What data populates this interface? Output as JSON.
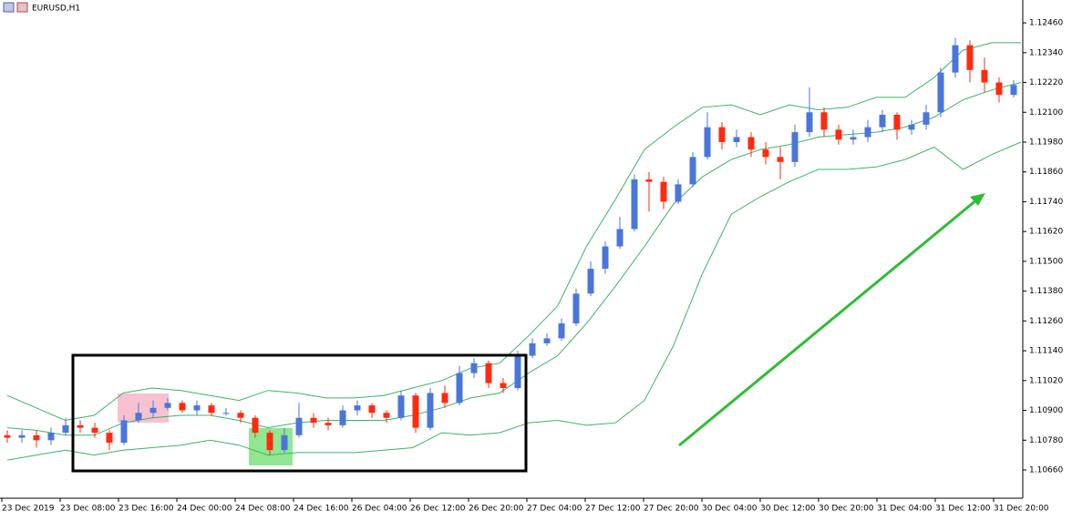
{
  "chart_data": {
    "type": "candlestick",
    "title": "EURUSD,H1",
    "up_color": "#4a76dc",
    "down_color": "#ff2a10",
    "open": [
      1.108,
      1.1079,
      1.108,
      1.1078,
      1.1081,
      1.1084,
      1.1083,
      1.1081,
      1.1077,
      1.1086,
      1.1089,
      1.1091,
      1.1093,
      1.109,
      1.1092,
      1.1089,
      1.1089,
      1.1087,
      1.1081,
      1.1074,
      1.108,
      1.1087,
      1.1085,
      1.1084,
      1.109,
      1.1092,
      1.1089,
      1.1087,
      1.1096,
      1.1083,
      1.1097,
      1.1093,
      1.1105,
      1.1109,
      1.1101,
      1.1099,
      1.1112,
      1.1117,
      1.1119,
      1.1125,
      1.1137,
      1.1147,
      1.1156,
      1.1163,
      1.1183,
      1.1182,
      1.1174,
      1.1181,
      1.1192,
      1.1204,
      1.1198,
      1.12,
      1.1195,
      1.1192,
      1.119,
      1.1202,
      1.121,
      1.1203,
      1.1199,
      1.12,
      1.1204,
      1.1209,
      1.1203,
      1.1205,
      1.121,
      1.1226,
      1.1237,
      1.1227,
      1.1222,
      1.1217
    ],
    "high": [
      1.1082,
      1.1082,
      1.1082,
      1.1083,
      1.1087,
      1.1086,
      1.1085,
      1.1082,
      1.1088,
      1.1093,
      1.1094,
      1.1095,
      1.1094,
      1.1094,
      1.1093,
      1.1091,
      1.109,
      1.1088,
      1.1082,
      1.1083,
      1.1093,
      1.1089,
      1.1087,
      1.1092,
      1.1094,
      1.1093,
      1.109,
      1.1098,
      1.1097,
      1.1099,
      1.11,
      1.1108,
      1.1111,
      1.111,
      1.1103,
      1.1114,
      1.1119,
      1.1121,
      1.1127,
      1.1139,
      1.115,
      1.1158,
      1.1168,
      1.1185,
      1.1186,
      1.1184,
      1.1183,
      1.1194,
      1.121,
      1.1206,
      1.1203,
      1.1202,
      1.1198,
      1.1196,
      1.1205,
      1.122,
      1.1212,
      1.1205,
      1.1203,
      1.1207,
      1.1211,
      1.121,
      1.1207,
      1.1213,
      1.1228,
      1.124,
      1.1239,
      1.1232,
      1.1224,
      1.1223
    ],
    "low": [
      1.1077,
      1.1077,
      1.1075,
      1.1076,
      1.108,
      1.1081,
      1.1079,
      1.1074,
      1.1076,
      1.1085,
      1.1087,
      1.109,
      1.1089,
      1.1088,
      1.1088,
      1.1088,
      1.1085,
      1.1079,
      1.1072,
      1.1073,
      1.1079,
      1.1083,
      1.1082,
      1.1083,
      1.1088,
      1.1087,
      1.1085,
      1.1086,
      1.1081,
      1.1082,
      1.1091,
      1.1092,
      1.1103,
      1.1099,
      1.1097,
      1.1098,
      1.1111,
      1.1116,
      1.1118,
      1.1124,
      1.1136,
      1.1145,
      1.1155,
      1.1162,
      1.117,
      1.1171,
      1.1173,
      1.118,
      1.1191,
      1.1195,
      1.1196,
      1.1192,
      1.1189,
      1.1183,
      1.1188,
      1.12,
      1.12,
      1.1197,
      1.1197,
      1.1198,
      1.1202,
      1.1199,
      1.1201,
      1.1203,
      1.1208,
      1.1224,
      1.1222,
      1.1218,
      1.1214,
      1.1216
    ],
    "close": [
      1.1079,
      1.108,
      1.1078,
      1.1081,
      1.1084,
      1.1083,
      1.1081,
      1.1077,
      1.1086,
      1.1089,
      1.1091,
      1.1093,
      1.109,
      1.1092,
      1.1089,
      1.1089,
      1.1087,
      1.1081,
      1.1074,
      1.108,
      1.1087,
      1.1085,
      1.1084,
      1.109,
      1.1092,
      1.1089,
      1.1087,
      1.1096,
      1.1083,
      1.1097,
      1.1093,
      1.1105,
      1.1109,
      1.1101,
      1.1099,
      1.1112,
      1.1117,
      1.1119,
      1.1125,
      1.1137,
      1.1147,
      1.1156,
      1.1163,
      1.1183,
      1.1182,
      1.1174,
      1.1181,
      1.1192,
      1.1204,
      1.1198,
      1.12,
      1.1195,
      1.1192,
      1.119,
      1.1202,
      1.121,
      1.1203,
      1.1199,
      1.12,
      1.1204,
      1.1209,
      1.1203,
      1.1205,
      1.121,
      1.1226,
      1.1237,
      1.1227,
      1.1222,
      1.1217,
      1.1221
    ],
    "bands": {
      "color": "#3cb464",
      "upper": [
        1.1096,
        1.1091,
        1.1086,
        1.1088,
        1.1097,
        1.1099,
        1.1098,
        1.1096,
        1.1094,
        1.1098,
        1.1097,
        1.1095,
        1.1095,
        1.1096,
        1.1099,
        1.1102,
        1.1107,
        1.1109,
        1.112,
        1.1132,
        1.1156,
        1.1175,
        1.1195,
        1.1204,
        1.1212,
        1.1213,
        1.1209,
        1.1213,
        1.1211,
        1.1212,
        1.1216,
        1.1216,
        1.1224,
        1.1235,
        1.1238,
        1.1238
      ],
      "middle": [
        1.1083,
        1.1082,
        1.108,
        1.108,
        1.1085,
        1.1087,
        1.1088,
        1.1088,
        1.1086,
        1.1083,
        1.1085,
        1.1086,
        1.1086,
        1.1086,
        1.1088,
        1.1091,
        1.1095,
        1.1097,
        1.1105,
        1.1112,
        1.1125,
        1.114,
        1.1156,
        1.1173,
        1.1184,
        1.1191,
        1.1195,
        1.1197,
        1.12,
        1.1201,
        1.1202,
        1.1204,
        1.1208,
        1.1215,
        1.1219,
        1.1222
      ],
      "lower": [
        1.107,
        1.1072,
        1.1074,
        1.1072,
        1.1074,
        1.1075,
        1.1076,
        1.1078,
        1.1076,
        1.1072,
        1.1073,
        1.1073,
        1.1073,
        1.1074,
        1.1075,
        1.1081,
        1.108,
        1.1081,
        1.1085,
        1.1086,
        1.1084,
        1.1085,
        1.1094,
        1.1116,
        1.1145,
        1.1169,
        1.1176,
        1.1182,
        1.1187,
        1.1187,
        1.1188,
        1.1191,
        1.1196,
        1.1187,
        1.1193,
        1.1198
      ]
    },
    "ylim": [
      1.1055,
      1.12552
    ],
    "yticks": [
      {
        "value": 1.1246,
        "label": "1.12460"
      },
      {
        "value": 1.1234,
        "label": "1.12340"
      },
      {
        "value": 1.1222,
        "label": "1.12220"
      },
      {
        "value": 1.121,
        "label": "1.12100"
      },
      {
        "value": 1.1198,
        "label": "1.11980"
      },
      {
        "value": 1.1186,
        "label": "1.11860"
      },
      {
        "value": 1.1174,
        "label": "1.11740"
      },
      {
        "value": 1.1162,
        "label": "1.11620"
      },
      {
        "value": 1.115,
        "label": "1.11500"
      },
      {
        "value": 1.1138,
        "label": "1.11380"
      },
      {
        "value": 1.1126,
        "label": "1.11260"
      },
      {
        "value": 1.1114,
        "label": "1.11140"
      },
      {
        "value": 1.1102,
        "label": "1.11020"
      },
      {
        "value": 1.109,
        "label": "1.10900"
      },
      {
        "value": 1.1078,
        "label": "1.10780"
      },
      {
        "value": 1.1066,
        "label": "1.10660"
      }
    ],
    "x_labels": [
      "23 Dec 2019",
      "23 Dec 08:00",
      "23 Dec 16:00",
      "24 Dec 00:00",
      "24 Dec 08:00",
      "24 Dec 16:00",
      "26 Dec 04:00",
      "26 Dec 12:00",
      "26 Dec 20:00",
      "27 Dec 04:00",
      "27 Dec 12:00",
      "27 Dec 20:00",
      "30 Dec 04:00",
      "30 Dec 12:00",
      "30 Dec 20:00",
      "31 Dec 04:00",
      "31 Dec 12:00",
      "31 Dec 20:00"
    ]
  }
}
